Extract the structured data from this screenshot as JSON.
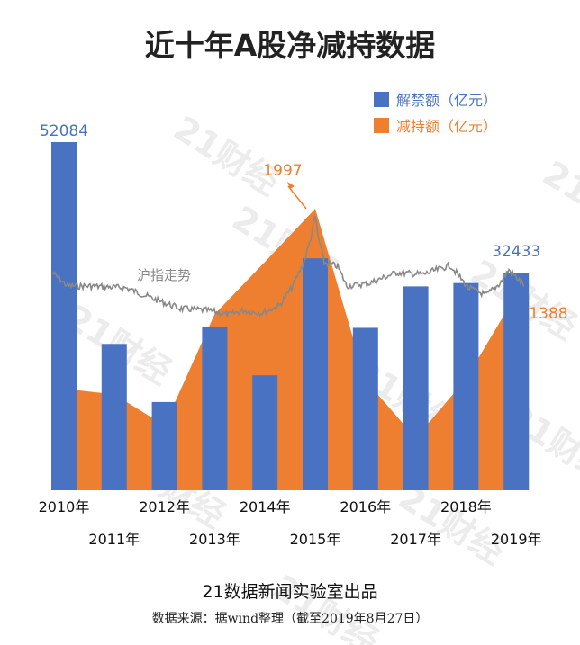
{
  "chart_data": {
    "type": "bar",
    "title": "近十年A股净减持数据",
    "categories": [
      "2010年",
      "2011年",
      "2012年",
      "2013年",
      "2014年",
      "2015年",
      "2016年",
      "2017年",
      "2018年",
      "2019年"
    ],
    "series": [
      {
        "name": "解禁额（亿元）",
        "type": "bar",
        "color": "#4a72c2",
        "values": [
          52084,
          21900,
          13200,
          24500,
          17200,
          34700,
          24300,
          30500,
          31000,
          32433
        ]
      },
      {
        "name": "减持额（亿元）",
        "type": "area",
        "color": "#ee7f30",
        "values": [
          720,
          680,
          460,
          1250,
          1620,
          1997,
          780,
          370,
          790,
          1388
        ]
      }
    ],
    "index_line": {
      "label": "沪指走势",
      "color": "#888888"
    },
    "annotations": [
      {
        "text": "52084",
        "series": 0,
        "index": 0,
        "color": "#4a72c2"
      },
      {
        "text": "1997",
        "series": 1,
        "index": 5,
        "color": "#ee7f30"
      },
      {
        "text": "32433",
        "series": 0,
        "index": 9,
        "color": "#4a72c2"
      },
      {
        "text": "1388",
        "series": 1,
        "index": 9,
        "color": "#ee7f30"
      }
    ],
    "legend": "top-right",
    "ylim_bar": [
      0,
      55000
    ],
    "ylim_area": [
      0,
      2100
    ]
  },
  "watermark": "21财经",
  "credit": "21数据新闻实验室出品",
  "source": "数据来源：据wind整理（截至2019年8月27日）"
}
